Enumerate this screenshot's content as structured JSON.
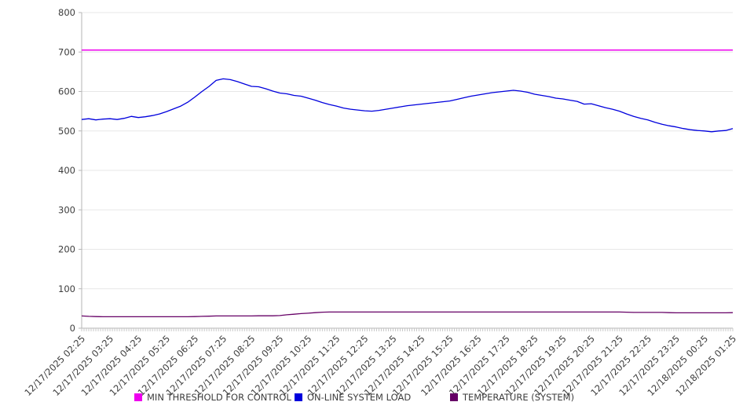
{
  "colors": {
    "grid": "#e7e7e7",
    "axis": "#b6b6b6",
    "minor_tick": "#c9c9c9",
    "tick_text": "#3d3d3d",
    "threshold": "#ee00ee",
    "load": "#0000dd",
    "temperature": "#660066"
  },
  "chart_data": {
    "type": "line",
    "title": "",
    "xlabel": "",
    "ylabel": "",
    "ylim": [
      0,
      800
    ],
    "y_ticks": [
      0,
      100,
      200,
      300,
      400,
      500,
      600,
      700,
      800
    ],
    "grid": "horizontal",
    "legend_position": "bottom",
    "x_start": "12/17/2025 02:25",
    "x_end": "12/18/2025 01:25",
    "sample_interval_minutes": 15,
    "point_count": 93,
    "minor_tick_count": 277,
    "x_labels": [
      "12/17/2025 02:25",
      "12/17/2025 03:25",
      "12/17/2025 04:25",
      "12/17/2025 05:25",
      "12/17/2025 06:25",
      "12/17/2025 07:25",
      "12/17/2025 08:25",
      "12/17/2025 09:25",
      "12/17/2025 10:25",
      "12/17/2025 11:25",
      "12/17/2025 12:25",
      "12/17/2025 13:25",
      "12/17/2025 14:25",
      "12/17/2025 15:25",
      "12/17/2025 16:25",
      "12/17/2025 17:25",
      "12/17/2025 18:25",
      "12/17/2025 19:25",
      "12/17/2025 20:25",
      "12/17/2025 21:25",
      "12/17/2025 22:25",
      "12/17/2025 23:25",
      "12/18/2025 00:25",
      "12/18/2025 01:25"
    ],
    "series": [
      {
        "name": "MIN THRESHOLD FOR CONTROL",
        "color": "#ee00ee",
        "constant": 705
      },
      {
        "name": "ON-LINE SYSTEM LOAD",
        "color": "#0000dd",
        "values": [
          529,
          531,
          528,
          530,
          531,
          529,
          532,
          537,
          534,
          536,
          539,
          543,
          549,
          556,
          563,
          573,
          586,
          600,
          613,
          628,
          632,
          630,
          625,
          619,
          613,
          612,
          607,
          601,
          596,
          594,
          590,
          588,
          583,
          578,
          572,
          567,
          563,
          558,
          555,
          553,
          551,
          550,
          552,
          555,
          558,
          561,
          564,
          566,
          568,
          570,
          572,
          574,
          576,
          580,
          584,
          588,
          591,
          594,
          597,
          599,
          601,
          603,
          601,
          598,
          593,
          590,
          587,
          583,
          581,
          578,
          575,
          568,
          569,
          564,
          559,
          555,
          550,
          543,
          537,
          532,
          528,
          522,
          517,
          513,
          510,
          506,
          503,
          501,
          500,
          498,
          500,
          501,
          506
        ]
      },
      {
        "name": "TEMPERATURE (SYSTEM)",
        "color": "#660066",
        "values": [
          31,
          30,
          29.5,
          29,
          29,
          29,
          29,
          29,
          29,
          29,
          29,
          29,
          29,
          29,
          29,
          29,
          29.5,
          30,
          30.5,
          31,
          31,
          31,
          31,
          31,
          31,
          31.5,
          31.5,
          31.5,
          32,
          34,
          35.5,
          37,
          38,
          39.5,
          40.5,
          41,
          41,
          41,
          41,
          41,
          41,
          41,
          41,
          41,
          41,
          41,
          41,
          41,
          41,
          41,
          41,
          41,
          41,
          41,
          41,
          41,
          41,
          41,
          41,
          41,
          41,
          41,
          41,
          41,
          41,
          41,
          41,
          41,
          41,
          41,
          41,
          41,
          41,
          41,
          41,
          41,
          41,
          40.5,
          40,
          40,
          40,
          40,
          40,
          39.5,
          39,
          39,
          39,
          39,
          39,
          39,
          39,
          39,
          39.5
        ]
      }
    ]
  },
  "legend": {
    "items": [
      {
        "label": "MIN THRESHOLD FOR CONTROL"
      },
      {
        "label": "ON-LINE SYSTEM LOAD"
      },
      {
        "label": "TEMPERATURE (SYSTEM)"
      }
    ]
  }
}
